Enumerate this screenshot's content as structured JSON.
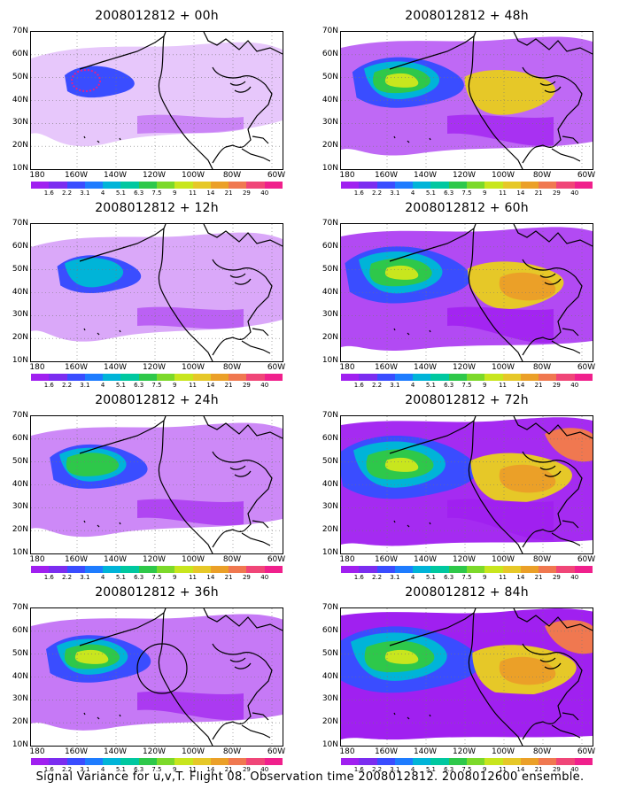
{
  "caption": "Signal Variance for u,v,T. Flight 08. Observation time 2008012812. 2008012600 ensemble.",
  "latitude_labels": [
    "70N",
    "60N",
    "50N",
    "40N",
    "30N",
    "20N",
    "10N"
  ],
  "longitude_labels": [
    "180",
    "160W",
    "140W",
    "120W",
    "100W",
    "80W",
    "60W"
  ],
  "colorbar_labels": [
    "1.6",
    "2.2",
    "3.1",
    "4",
    "5.1",
    "6.3",
    "7.5",
    "9",
    "11",
    "14",
    "21",
    "29",
    "40"
  ],
  "colorbar_colors": [
    "#a020f0",
    "#7b2df0",
    "#3a4dff",
    "#1e7cff",
    "#00b4d8",
    "#00c8a0",
    "#2ec84a",
    "#7cd92a",
    "#c8e61e",
    "#e6c828",
    "#eba028",
    "#f07850",
    "#f04678",
    "#f0208c"
  ],
  "panels": [
    {
      "title": "2008012812 + 00h",
      "level": 0
    },
    {
      "title": "2008012812 + 48h",
      "level": 3
    },
    {
      "title": "2008012812 + 12h",
      "level": 1
    },
    {
      "title": "2008012812 + 60h",
      "level": 4
    },
    {
      "title": "2008012812 + 24h",
      "level": 2
    },
    {
      "title": "2008012812 + 72h",
      "level": 5
    },
    {
      "title": "2008012812 + 36h",
      "level": 2.5,
      "circle": true
    },
    {
      "title": "2008012812 + 84h",
      "level": 5.5
    }
  ]
}
